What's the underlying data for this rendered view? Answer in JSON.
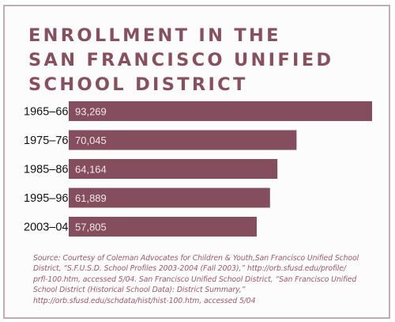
{
  "title_lines": [
    "ENROLLMENT IN THE",
    "SAN FRANCISCO UNIFIED",
    "SCHOOL DISTRICT"
  ],
  "colors": {
    "bar": "#854e5e",
    "title": "#86505e",
    "border": "#c3aab4",
    "source_text": "#9a5a6a",
    "value_label": "#f2e6ea"
  },
  "chart_data": {
    "type": "bar",
    "orientation": "horizontal",
    "title": "ENROLLMENT IN THE SAN FRANCISCO UNIFIED SCHOOL DISTRICT",
    "categories": [
      "1965–66",
      "1975–76",
      "1985–86",
      "1995–96",
      "2003–04"
    ],
    "values": [
      93269,
      70045,
      64164,
      61889,
      57805
    ],
    "value_labels": [
      "93,269",
      "70,045",
      "64,164",
      "61,889",
      "57,805"
    ],
    "xlim": [
      0,
      93269
    ],
    "grid": false,
    "legend": "none"
  },
  "source_lines": [
    "Source: Courtesy of Coleman Advocates for Children & Youth,San Francisco Unified School",
    "District, “S.F.U.S.D. School Profiles 2003-2004 (Fall 2003),” http://orb.sfusd.edu/profile/",
    "prfl-100.htm, accessed 5/04.  San Francisco Unified School District, “San Francisco Unified",
    "School District (Historical School Data): District Summary,”",
    "http://orb.sfusd.edu/schdata/hist/hist-100.htm, accessed 5/04"
  ]
}
